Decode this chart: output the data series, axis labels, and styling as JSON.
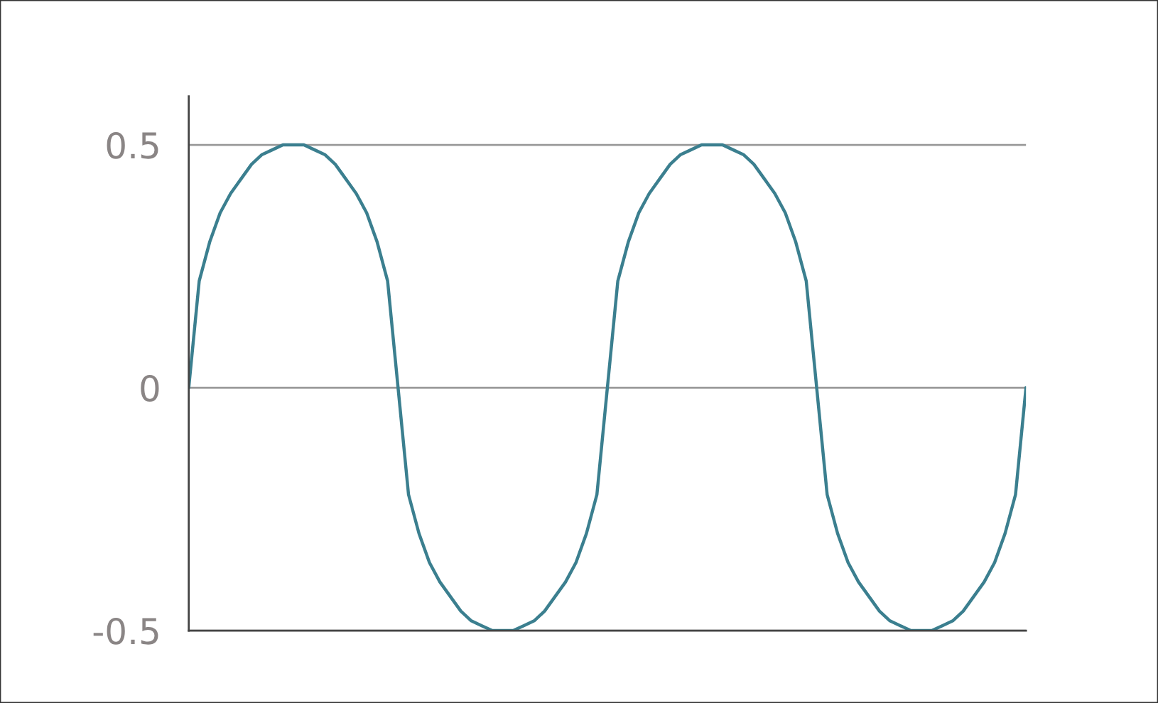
{
  "chart_data": {
    "type": "line",
    "categories": [
      null,
      null,
      null,
      null,
      null,
      null,
      null,
      null,
      null,
      null,
      null,
      null,
      null,
      null,
      null,
      null,
      null,
      null,
      null,
      null,
      null,
      null,
      null,
      null,
      null,
      null,
      null,
      null,
      null,
      null,
      null,
      null,
      null,
      null,
      null,
      null,
      null,
      null,
      null,
      null,
      null,
      null,
      null,
      null,
      null,
      null,
      null,
      null,
      null,
      null,
      null,
      null,
      null,
      null,
      null,
      null,
      null,
      null,
      null,
      null,
      null,
      null,
      null,
      null,
      null,
      null,
      null,
      null,
      null,
      null,
      null,
      null,
      null,
      null,
      null,
      null,
      null,
      null,
      null,
      null,
      null
    ],
    "series": [
      {
        "color": "#3b7f8f",
        "values": [
          0,
          0.22,
          0.3,
          0.36,
          0.4,
          0.43,
          0.46,
          0.48,
          0.49,
          0.5,
          0.5,
          0.5,
          0.49,
          0.48,
          0.46,
          0.43,
          0.4,
          0.36,
          0.3,
          0.22,
          0,
          -0.22,
          -0.3,
          -0.36,
          -0.4,
          -0.43,
          -0.46,
          -0.48,
          -0.49,
          -0.5,
          -0.5,
          -0.5,
          -0.49,
          -0.48,
          -0.46,
          -0.43,
          -0.4,
          -0.36,
          -0.3,
          -0.22,
          0,
          0.22,
          0.3,
          0.36,
          0.4,
          0.43,
          0.46,
          0.48,
          0.49,
          0.5,
          0.5,
          0.5,
          0.49,
          0.48,
          0.46,
          0.43,
          0.4,
          0.36,
          0.3,
          0.22,
          0,
          -0.22,
          -0.3,
          -0.36,
          -0.4,
          -0.43,
          -0.46,
          -0.48,
          -0.49,
          -0.5,
          -0.5,
          -0.5,
          -0.49,
          -0.48,
          -0.46,
          -0.43,
          -0.4,
          -0.36,
          -0.3,
          -0.22,
          0
        ]
      }
    ],
    "ylim": [
      -0.5,
      0.6
    ],
    "yticks": [
      0.5,
      0,
      -0.5
    ],
    "grid": "y",
    "tick_labels": "y",
    "marker": "none",
    "line_style": "solid"
  }
}
